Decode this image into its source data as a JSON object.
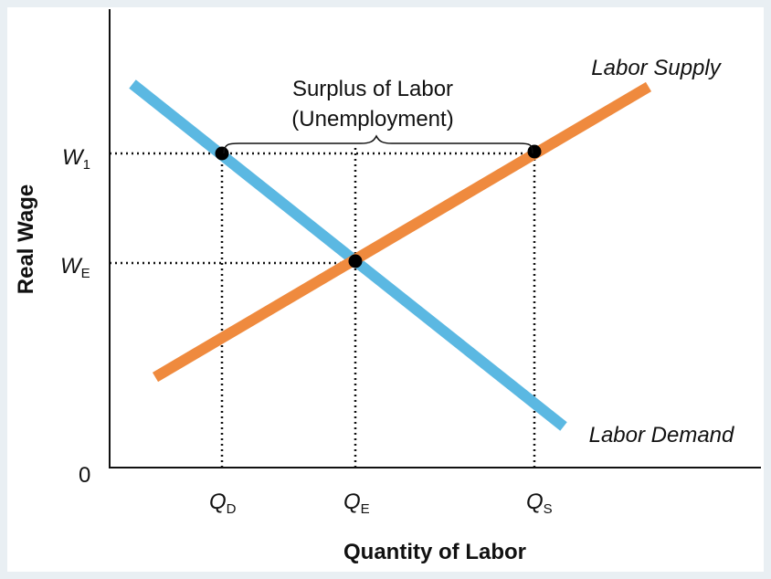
{
  "axes": {
    "y_label": "Real Wage",
    "x_label": "Quantity of Labor",
    "origin": "0"
  },
  "y_ticks": [
    {
      "symbol": "W",
      "subscript": "1"
    },
    {
      "symbol": "W",
      "subscript": "E"
    }
  ],
  "x_ticks": [
    {
      "symbol": "Q",
      "subscript": "D"
    },
    {
      "symbol": "Q",
      "subscript": "E"
    },
    {
      "symbol": "Q",
      "subscript": "S"
    }
  ],
  "annotation": {
    "line1": "Surplus of Labor",
    "line2": "(Unemployment)"
  },
  "curves": {
    "supply": "Labor Supply",
    "demand": "Labor Demand"
  }
}
